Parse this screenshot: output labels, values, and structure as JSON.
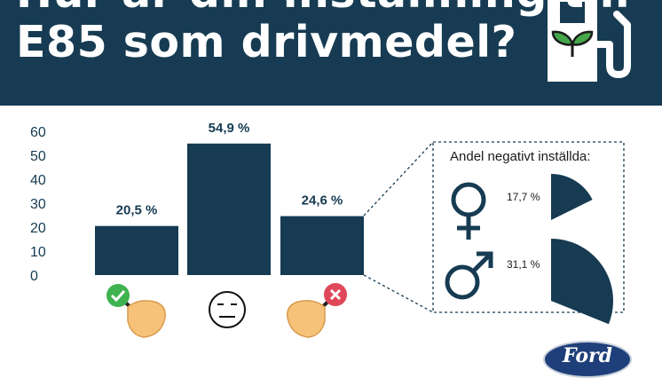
{
  "header": {
    "title_line1": "Hur är din inställning till",
    "title_line2": "E85 som drivmedel?",
    "background_color": "#163b52",
    "icon": "fuel-pump-leaf-icon"
  },
  "chart_data": {
    "type": "bar",
    "categories": [
      "positive",
      "neutral",
      "negative"
    ],
    "values": [
      20.5,
      54.9,
      24.6
    ],
    "value_labels": [
      "20,5 %",
      "54,9 %",
      "24,6 %"
    ],
    "category_icons": [
      "thumb-check-icon",
      "neutral-face-icon",
      "thumb-cross-icon"
    ],
    "ylim": [
      0,
      60
    ],
    "yticks": [
      0,
      10,
      20,
      30,
      40,
      50,
      60
    ],
    "grid": false,
    "bar_color": "#163b52"
  },
  "callout": {
    "title": "Andel negativt inställda:",
    "items": [
      {
        "icon": "female-symbol-icon",
        "label": "17,7 %",
        "value": 17.7
      },
      {
        "icon": "male-symbol-icon",
        "label": "31,1 %",
        "value": 31.1
      }
    ]
  },
  "footer": {
    "logo_text": "Ford",
    "logo_color": "#1f3f7a"
  }
}
